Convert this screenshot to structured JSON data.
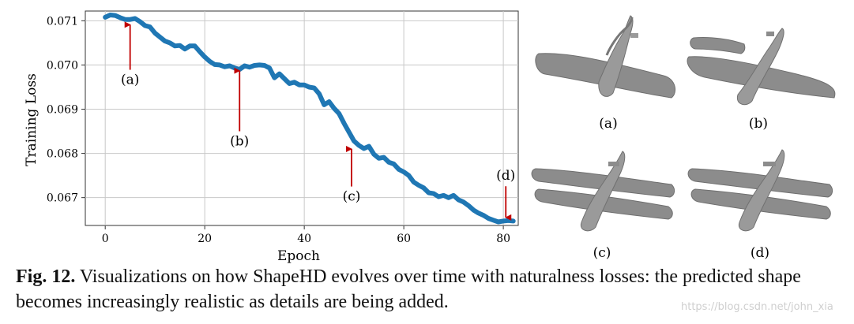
{
  "chart_data": {
    "type": "line",
    "xlabel": "Epoch",
    "ylabel": "Training Loss",
    "xlim": [
      -4,
      83
    ],
    "ylim": [
      0.06637,
      0.07122
    ],
    "x_ticks": [
      0,
      20,
      40,
      60,
      80
    ],
    "y_ticks": [
      0.067,
      0.068,
      0.069,
      0.07,
      0.071
    ],
    "x_tick_labels": [
      "0",
      "20",
      "40",
      "60",
      "80"
    ],
    "y_tick_labels": [
      "0.067",
      "0.068",
      "0.069",
      "0.070",
      "0.071"
    ],
    "grid": true,
    "series": [
      {
        "color": "#1f77b4",
        "x": [
          0,
          1,
          2,
          3,
          4,
          5,
          6,
          7,
          8,
          9,
          10,
          11,
          12,
          13,
          14,
          15,
          16,
          17,
          18,
          19,
          20,
          21,
          22,
          23,
          24,
          25,
          26,
          27,
          28,
          29,
          30,
          31,
          32,
          33,
          34,
          35,
          36,
          37,
          38,
          39,
          40,
          41,
          42,
          43,
          44,
          45,
          46,
          47,
          48,
          49,
          50,
          51,
          52,
          53,
          54,
          55,
          56,
          57,
          58,
          59,
          60,
          61,
          62,
          63,
          64,
          65,
          66,
          67,
          68,
          69,
          70,
          71,
          72,
          73,
          74,
          75,
          76,
          77,
          78,
          79,
          80,
          81,
          82
        ],
        "y": [
          0.07108,
          0.07113,
          0.07112,
          0.07107,
          0.07103,
          0.07103,
          0.07105,
          0.07098,
          0.07089,
          0.07086,
          0.07072,
          0.07063,
          0.07054,
          0.0705,
          0.07043,
          0.07044,
          0.07036,
          0.07043,
          0.07043,
          0.0703,
          0.07018,
          0.07008,
          0.07001,
          0.07,
          0.06996,
          0.06998,
          0.06993,
          0.0699,
          0.06998,
          0.06995,
          0.06999,
          0.07,
          0.06999,
          0.06993,
          0.06971,
          0.0698,
          0.06969,
          0.06958,
          0.06961,
          0.06955,
          0.06955,
          0.0695,
          0.06948,
          0.06935,
          0.0691,
          0.06917,
          0.06902,
          0.0689,
          0.06868,
          0.06848,
          0.06828,
          0.06818,
          0.06811,
          0.06816,
          0.06798,
          0.06789,
          0.06791,
          0.0678,
          0.06776,
          0.06764,
          0.06758,
          0.0675,
          0.06735,
          0.06728,
          0.06722,
          0.06711,
          0.06709,
          0.06702,
          0.06705,
          0.067,
          0.06705,
          0.06695,
          0.0669,
          0.06682,
          0.06672,
          0.06665,
          0.0666,
          0.06653,
          0.06649,
          0.06645,
          0.06647,
          0.06648,
          0.06647
        ]
      }
    ],
    "annotations": [
      {
        "label": "(a)",
        "x": 5,
        "y_text": 0.06957,
        "arrow_to": 0.07091
      },
      {
        "label": "(b)",
        "x": 27,
        "y_text": 0.06818,
        "arrow_to": 0.06987
      },
      {
        "label": "(c)",
        "x": 49.5,
        "y_text": 0.06693,
        "arrow_to": 0.0681
      },
      {
        "label": "(d)",
        "x": 80.5,
        "y_text": 0.0674,
        "arrow_to": 0.06655
      }
    ],
    "annotation_arrow_color": "#c00000"
  },
  "shapes": {
    "labels": [
      "(a)",
      "(b)",
      "(c)",
      "(d)"
    ],
    "fill_color": "#8c8c8c"
  },
  "caption": {
    "label": "Fig. 12.",
    "text": " Visualizations on how ShapeHD evolves over time with naturalness losses: the predicted shape becomes increasingly realistic as details are being added."
  },
  "watermark": "https://blog.csdn.net/john_xia"
}
